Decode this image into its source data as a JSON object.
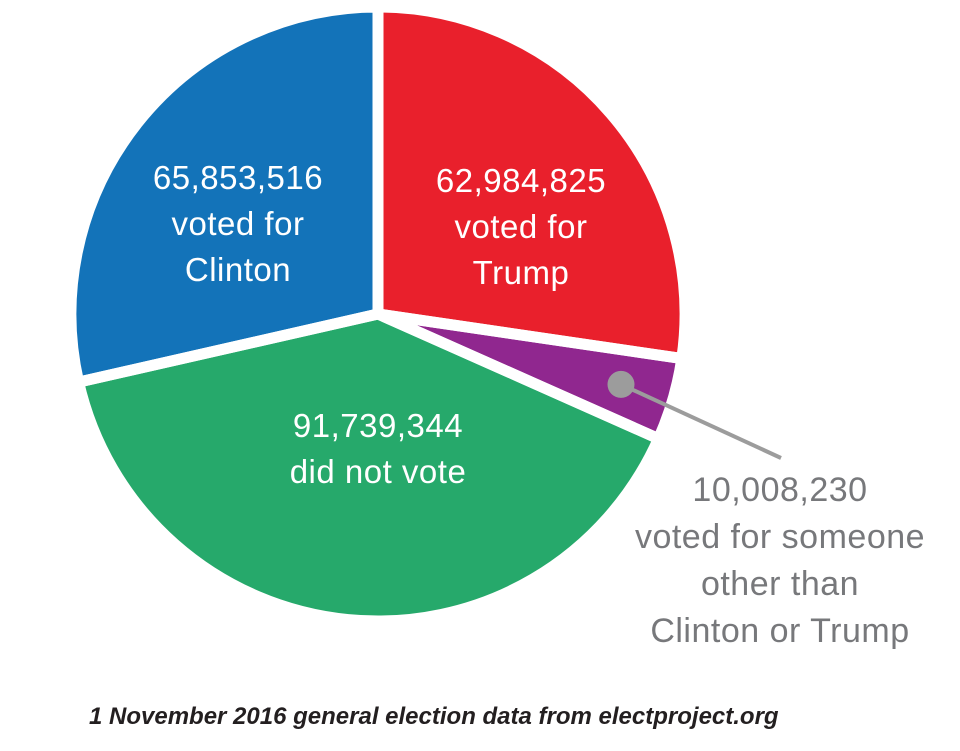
{
  "chart_data": {
    "type": "pie",
    "direction": "clockwise",
    "start_angle_deg": 0,
    "gap_color": "#ffffff",
    "slices": [
      {
        "name": "trump",
        "value": 62984825,
        "value_text": "62,984,825",
        "label_lines": [
          "62,984,825",
          "voted for",
          "Trump"
        ],
        "color": "#e9202c",
        "text_color": "#ffffff"
      },
      {
        "name": "other",
        "value": 10008230,
        "value_text": "10,008,230",
        "label_lines": [
          "10,008,230",
          "voted for someone",
          "other than",
          "Clinton or Trump"
        ],
        "color": "#90278f",
        "text_color": "#77787b"
      },
      {
        "name": "did_not_vote",
        "value": 91739344,
        "value_text": "91,739,344",
        "label_lines": [
          "91,739,344",
          "did not vote"
        ],
        "color": "#26a96b",
        "text_color": "#ffffff"
      },
      {
        "name": "clinton",
        "value": 65853516,
        "value_text": "65,853,516",
        "label_lines": [
          "65,853,516",
          "voted for",
          "Clinton"
        ],
        "color": "#1373b9",
        "text_color": "#ffffff"
      }
    ],
    "callout": {
      "slice": "other",
      "line_color": "#9c9c9c",
      "dot_color": "#9c9c9c"
    },
    "footnote": "1 November 2016 general election data from electproject.org",
    "footnote_color": "#231f20"
  }
}
